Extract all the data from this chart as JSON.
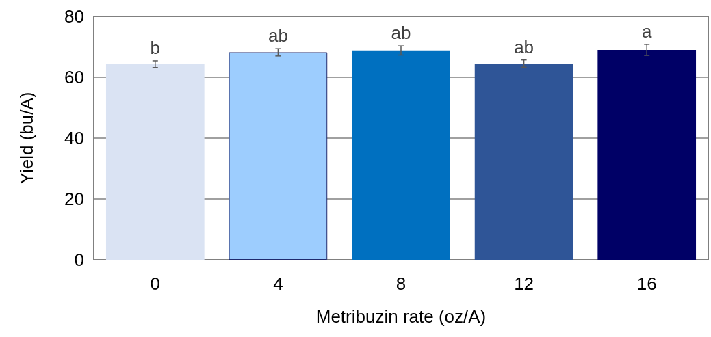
{
  "chart_data": {
    "type": "bar",
    "xlabel": "Metribuzin rate (oz/A)",
    "ylabel": "Yield (bu/A)",
    "categories": [
      "0",
      "4",
      "8",
      "12",
      "16"
    ],
    "values": [
      64.3,
      68.2,
      68.8,
      64.5,
      69.0
    ],
    "errors": [
      1.1,
      1.2,
      1.5,
      1.2,
      1.8
    ],
    "colors": [
      "#dae3f3",
      "#9dcdfe",
      "#0070c0",
      "#2f5597",
      "#000066"
    ],
    "ylim": [
      0,
      80
    ],
    "yticks": [
      0,
      20,
      40,
      60,
      80
    ],
    "grid": "y",
    "annotations": [
      {
        "text": "b",
        "x": "0",
        "y": 64.3
      },
      {
        "text": "ab",
        "x": "4",
        "y": 68.2
      },
      {
        "text": "ab",
        "x": "8",
        "y": 68.8
      },
      {
        "text": "ab",
        "x": "12",
        "y": 64.5
      },
      {
        "text": "a",
        "x": "16",
        "y": 69.0
      }
    ]
  }
}
